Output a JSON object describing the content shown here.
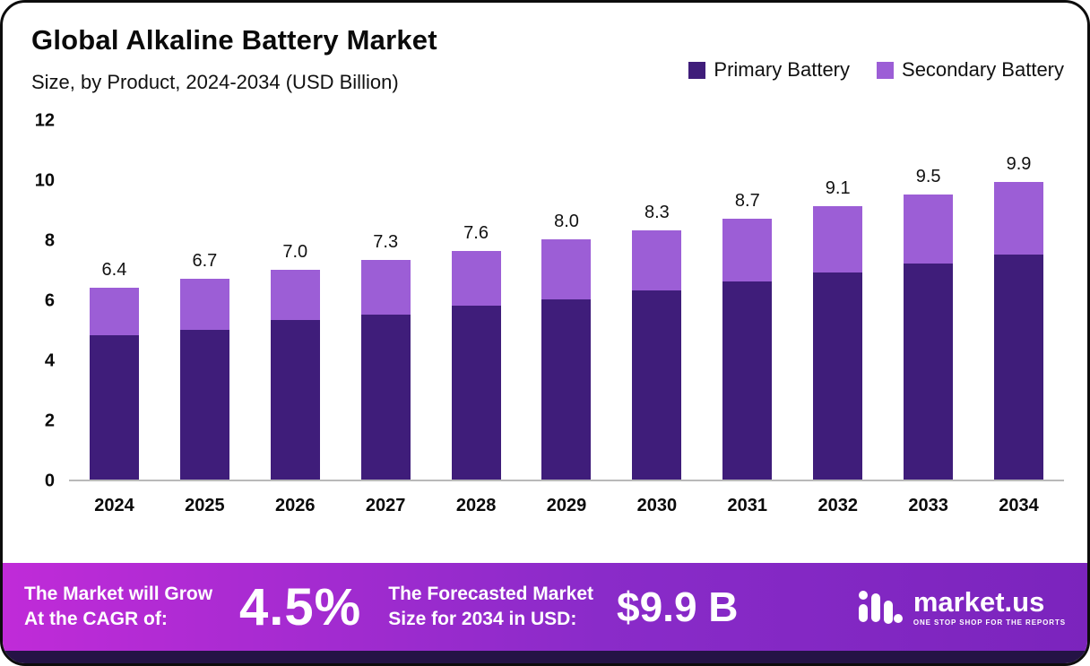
{
  "title": "Global Alkaline Battery Market",
  "subtitle": "Size, by Product, 2024-2034 (USD Billion)",
  "colors": {
    "primary_series": "#3F1D7A",
    "secondary_series": "#9C5ED6",
    "banner_gradient_start": "#C02BD8",
    "banner_gradient_mid": "#8A2BC9",
    "banner_gradient_end": "#7B24BD",
    "footer_strip": "#241345",
    "axis_line": "#B9B9B9"
  },
  "chart_data": {
    "type": "bar",
    "stacked": true,
    "title": "Global Alkaline Battery Market",
    "subtitle": "Size, by Product, 2024-2034 (USD Billion)",
    "categories": [
      "2024",
      "2025",
      "2026",
      "2027",
      "2028",
      "2029",
      "2030",
      "2031",
      "2032",
      "2033",
      "2034"
    ],
    "series": [
      {
        "name": "Primary Battery",
        "color": "#3F1D7A",
        "values": [
          4.8,
          5.0,
          5.3,
          5.5,
          5.8,
          6.0,
          6.3,
          6.6,
          6.9,
          7.2,
          7.5
        ]
      },
      {
        "name": "Secondary Battery",
        "color": "#9C5ED6",
        "values": [
          1.6,
          1.7,
          1.7,
          1.8,
          1.8,
          2.0,
          2.0,
          2.1,
          2.2,
          2.3,
          2.4
        ]
      }
    ],
    "totals": [
      6.4,
      6.7,
      7.0,
      7.3,
      7.6,
      8.0,
      8.3,
      8.7,
      9.1,
      9.5,
      9.9
    ],
    "total_labels": [
      "6.4",
      "6.7",
      "7.0",
      "7.3",
      "7.6",
      "8.0",
      "8.3",
      "8.7",
      "9.1",
      "9.5",
      "9.9"
    ],
    "xlabel": "",
    "ylabel": "",
    "y_ticks": [
      0,
      2,
      4,
      6,
      8,
      10,
      12
    ],
    "ylim": [
      0,
      12
    ],
    "grid": false,
    "legend_position": "top-right"
  },
  "banner": {
    "cagr_label_line1": "The Market will Grow",
    "cagr_label_line2": "At the CAGR of:",
    "cagr_value": "4.5%",
    "forecast_label_line1": "The Forecasted Market",
    "forecast_label_line2": "Size for 2034 in USD:",
    "forecast_value": "$9.9 B",
    "logo_text": "market.us",
    "logo_tagline": "ONE STOP SHOP FOR THE REPORTS"
  }
}
